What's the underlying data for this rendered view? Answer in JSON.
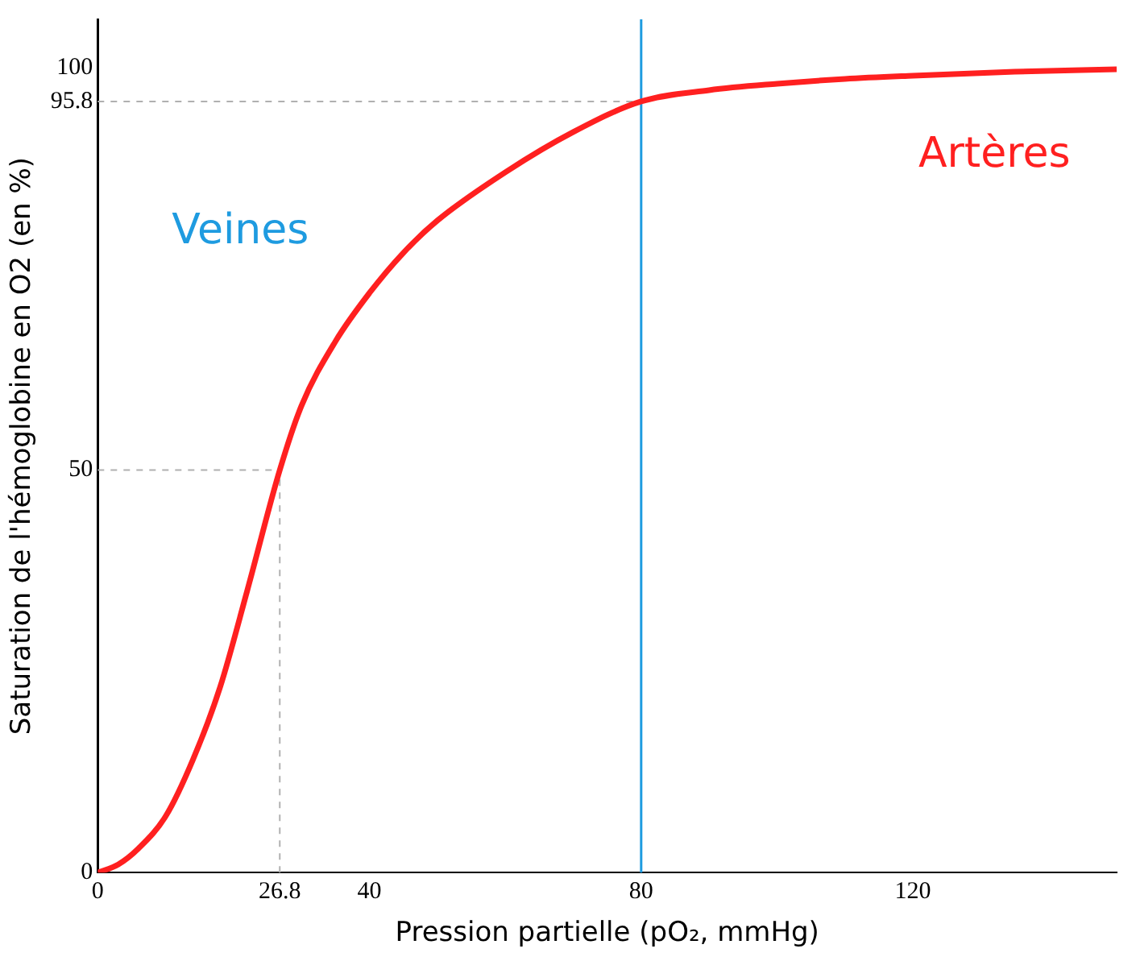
{
  "chart_data": {
    "type": "line",
    "xlabel": "Pression partielle (pO₂, mmHg)",
    "ylabel": "Saturation de l'hémoglobine en O2 (en %)",
    "x": [
      0,
      3,
      6,
      10,
      14,
      18,
      22,
      26.8,
      30,
      35,
      40,
      45,
      50,
      60,
      70,
      80,
      90,
      100,
      110,
      120,
      135,
      150
    ],
    "series": [
      {
        "color": "#ff2020",
        "values": [
          0,
          1,
          3,
          7,
          14,
          23,
          35,
          50,
          58,
          66,
          72,
          77,
          81,
          87,
          92,
          95.8,
          97.2,
          98,
          98.6,
          99,
          99.5,
          99.8
        ]
      }
    ],
    "xlim": [
      0,
      150
    ],
    "ylim": [
      0,
      106
    ],
    "xticks": [
      0,
      26.8,
      40,
      80,
      120
    ],
    "yticks": [
      0,
      50,
      95.8,
      100
    ],
    "ref_lines": [
      {
        "axis": "y",
        "value": 50,
        "color": "#b0b0b0",
        "line_style": "dashed"
      },
      {
        "axis": "x",
        "value": 26.8,
        "color": "#b0b0b0",
        "line_style": "dashed"
      },
      {
        "axis": "y",
        "value": 95.8,
        "color": "#b0b0b0",
        "line_style": "dashed"
      },
      {
        "axis": "x",
        "value": 80,
        "color": "#1e9be0",
        "line_style": "solid"
      }
    ],
    "annotations": [
      "Veines",
      "Artères"
    ],
    "grid": false,
    "marker": "none",
    "line_style": "solid",
    "legend": false
  }
}
